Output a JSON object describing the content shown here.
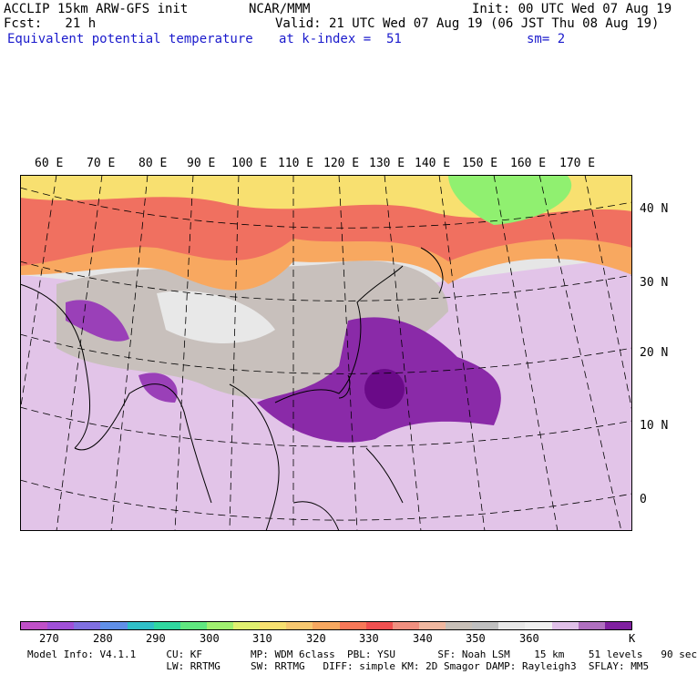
{
  "header": {
    "left_line1": "ACCLIP 15km ARW-GFS init",
    "left_line2": "Fcst:   21 h",
    "left_line3": "Equivalent potential temperature",
    "center_line1": "NCAR/MMM",
    "right_line1": "Init: 00 UTC Wed 07 Aug 19",
    "valid_line": "Valid: 21 UTC Wed 07 Aug 19 (06 JST Thu 08 Aug 19)",
    "level_text": "at k-index =  51",
    "smooth_text": "sm= 2"
  },
  "longitudes": [
    "60 E",
    "70 E",
    "80 E",
    "90 E",
    "100 E",
    "110 E",
    "120 E",
    "130 E",
    "140 E",
    "150 E",
    "160 E",
    "170 E"
  ],
  "latitudes": [
    "40 N",
    "30 N",
    "20 N",
    "10 N",
    "0"
  ],
  "colorbar": {
    "colors": [
      "#c050c8",
      "#a050d8",
      "#8070e0",
      "#6090e8",
      "#30c0c8",
      "#30d8a0",
      "#60e880",
      "#a0f070",
      "#e0f070",
      "#f8e070",
      "#f8c870",
      "#f8a860",
      "#f87858",
      "#f05050",
      "#f09080",
      "#f0b8a0",
      "#c8c0b8",
      "#c0c0c0",
      "#e8e8e8",
      "#f0f0f0",
      "#e0c0e8",
      "#b070c0",
      "#8020a0"
    ],
    "ticks": [
      "270",
      "280",
      "290",
      "300",
      "310",
      "320",
      "330",
      "340",
      "350",
      "360"
    ],
    "unit": "K"
  },
  "model_info": {
    "line1": "Model Info: V4.1.1     CU: KF        MP: WDM 6class  PBL: YSU       SF: Noah LSM    15 km    51 levels   90 sec",
    "line2": "                       LW: RRTMG     SW: RRTMG   DIFF: simple KM: 2D Smagor DAMP: Rayleigh3  SFLAY: MM5"
  }
}
